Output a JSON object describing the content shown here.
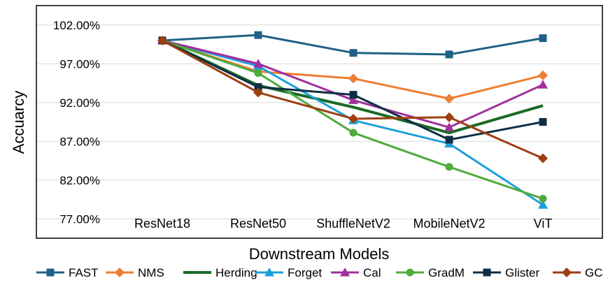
{
  "chart_data": {
    "type": "line",
    "title": "",
    "xlabel": "Downstream Models",
    "ylabel": "Accuarcy",
    "categories": [
      "ResNet18",
      "ResNet50",
      "ShuffleNetV2",
      "MobileNetV2",
      "ViT"
    ],
    "ylim": [
      74.5,
      104.5
    ],
    "yticks": [
      77,
      82,
      87,
      92,
      97,
      102
    ],
    "ytick_labels": [
      "77.00%",
      "82.00%",
      "87.00%",
      "92.00%",
      "97.00%",
      "102.00%"
    ],
    "grid": true,
    "legend_position": "bottom",
    "series": [
      {
        "name": "FAST",
        "color": "#1f6086",
        "marker": "square",
        "values": [
          100.0,
          100.7,
          98.4,
          98.2,
          100.3
        ]
      },
      {
        "name": "NMS",
        "color": "#ee7d31",
        "marker": "diamond",
        "values": [
          100.0,
          96.0,
          95.1,
          92.5,
          95.5
        ]
      },
      {
        "name": "Herding",
        "color": "#196b24",
        "marker": "none",
        "values": [
          100.0,
          94.2,
          91.4,
          88.1,
          91.6
        ]
      },
      {
        "name": "Forget",
        "color": "#1c9fdb",
        "marker": "triangle",
        "values": [
          100.0,
          96.7,
          89.7,
          86.7,
          78.8
        ]
      },
      {
        "name": "Cal",
        "color": "#a0309e",
        "marker": "triangle",
        "values": [
          100.0,
          97.0,
          92.3,
          88.8,
          94.3
        ]
      },
      {
        "name": "GradM",
        "color": "#4fab3a",
        "marker": "circle",
        "values": [
          100.0,
          95.8,
          88.1,
          83.7,
          79.6
        ]
      },
      {
        "name": "Glister",
        "color": "#0f2e44",
        "marker": "square",
        "values": [
          100.0,
          94.0,
          93.0,
          87.2,
          89.5
        ]
      },
      {
        "name": "GC",
        "color": "#9e3f12",
        "marker": "diamond",
        "values": [
          100.0,
          93.3,
          89.9,
          90.1,
          84.8
        ]
      }
    ]
  }
}
